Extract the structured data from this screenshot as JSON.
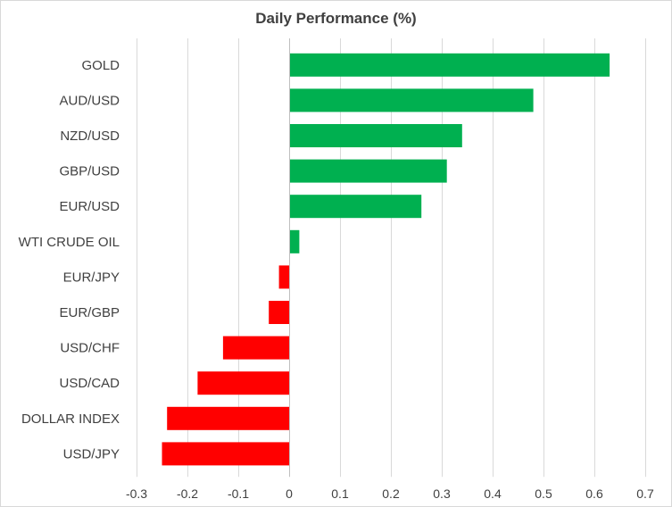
{
  "chart_data": {
    "type": "bar",
    "orientation": "horizontal",
    "title": "Daily Performance (%)",
    "xlabel": "",
    "ylabel": "",
    "categories": [
      "GOLD",
      "AUD/USD",
      "NZD/USD",
      "GBP/USD",
      "EUR/USD",
      "WTI CRUDE OIL",
      "EUR/JPY",
      "EUR/GBP",
      "USD/CHF",
      "USD/CAD",
      "DOLLAR INDEX",
      "USD/JPY"
    ],
    "values": [
      0.63,
      0.48,
      0.34,
      0.31,
      0.26,
      0.02,
      -0.02,
      -0.04,
      -0.13,
      -0.18,
      -0.24,
      -0.25
    ],
    "xlim": [
      -0.3,
      0.7
    ],
    "xticks": [
      "-0.3",
      "-0.2",
      "-0.1",
      "0",
      "0.1",
      "0.2",
      "0.3",
      "0.4",
      "0.5",
      "0.6",
      "0.7"
    ],
    "grid": "vertical",
    "legend": "none",
    "colors": {
      "positive": "#00b050",
      "negative": "#ff0000",
      "grid": "#d9d9d9",
      "axis": "#bfbfbf"
    }
  }
}
